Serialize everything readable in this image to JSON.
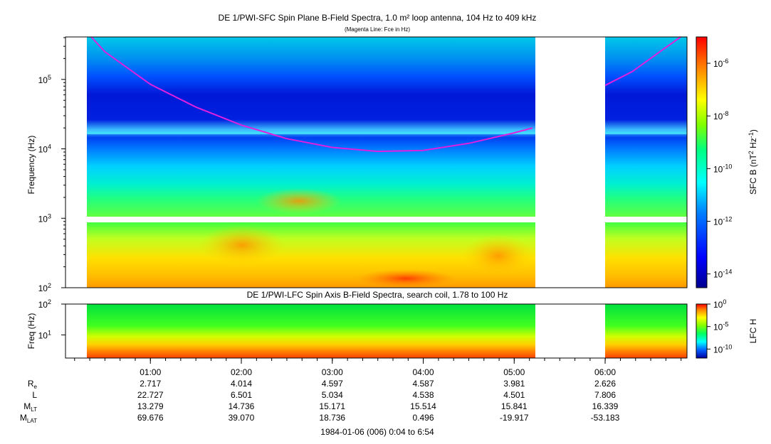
{
  "chart_data": [
    {
      "type": "heatmap",
      "title": "DE 1/PWI-SFC  Spin Plane B-Field Spectra, 1.0 m² loop antenna, 104 Hz to 409 kHz",
      "subtitle": "(Magenta Line: Fce in Hz)",
      "ylabel": "Frequency (Hz)",
      "yscale": "log",
      "ylim": [
        100,
        409000
      ],
      "yticks": [
        {
          "value": 100,
          "base": "10",
          "exp": "2"
        },
        {
          "value": 1000,
          "base": "10",
          "exp": "3"
        },
        {
          "value": 10000,
          "base": "10",
          "exp": "4"
        },
        {
          "value": 100000,
          "base": "10",
          "exp": "5"
        }
      ],
      "colorbar": {
        "label": "SFC B (nT",
        "label_sup1": "2",
        "label_mid": " Hz",
        "label_sup2": "-1",
        "label_end": ")",
        "scale": "log",
        "range": [
          3e-15,
          1e-05
        ],
        "ticks": [
          {
            "value": 1e-06,
            "base": "10",
            "exp": "-6"
          },
          {
            "value": 1e-08,
            "base": "10",
            "exp": "-8"
          },
          {
            "value": 1e-10,
            "base": "10",
            "exp": "-10"
          },
          {
            "value": 1e-12,
            "base": "10",
            "exp": "-12"
          },
          {
            "value": 1e-14,
            "base": "10",
            "exp": "-14"
          }
        ]
      },
      "data_gaps_hours": [
        [
          5.2,
          5.98
        ]
      ],
      "fce_line": {
        "color": "#e020e0",
        "segments": [
          [
            [
              0.35,
              409000
            ],
            [
              0.5,
              250000
            ],
            [
              1.0,
              85000
            ],
            [
              1.5,
              40000
            ],
            [
              2.0,
              22000
            ],
            [
              2.5,
              14000
            ],
            [
              3.0,
              10500
            ],
            [
              3.5,
              9200
            ],
            [
              4.0,
              9500
            ],
            [
              4.5,
              12000
            ],
            [
              5.0,
              17000
            ],
            [
              5.2,
              20000
            ]
          ],
          [
            [
              6.0,
              82000
            ],
            [
              6.3,
              130000
            ],
            [
              6.6,
              250000
            ],
            [
              6.83,
              409000
            ]
          ]
        ]
      }
    },
    {
      "type": "heatmap",
      "title": "DE 1/PWI-LFC  Spin Axis B-Field Spectra, search coil, 1.78 to 100 Hz",
      "ylabel": "Freq (Hz)",
      "yscale": "log",
      "ylim": [
        1.78,
        100
      ],
      "yticks": [
        {
          "value": 10,
          "base": "10",
          "exp": "1"
        },
        {
          "value": 100,
          "base": "10",
          "exp": "2"
        }
      ],
      "colorbar": {
        "label": "LFC H",
        "scale": "log",
        "range": [
          1e-12,
          1
        ],
        "ticks": [
          {
            "value": 1,
            "base": "10",
            "exp": "0"
          },
          {
            "value": 1e-05,
            "base": "10",
            "exp": "-5"
          },
          {
            "value": 1e-10,
            "base": "10",
            "exp": "-10"
          }
        ]
      },
      "data_gaps_hours": [
        [
          5.2,
          5.98
        ]
      ]
    }
  ],
  "time_axis": {
    "range_hours": [
      0.0667,
      6.9
    ],
    "ticks": [
      {
        "hour": 1,
        "label": "01:00"
      },
      {
        "hour": 2,
        "label": "02:00"
      },
      {
        "hour": 3,
        "label": "03:00"
      },
      {
        "hour": 4,
        "label": "04:00"
      },
      {
        "hour": 5,
        "label": "05:00"
      },
      {
        "hour": 6,
        "label": "06:00"
      }
    ],
    "minor_step_hours": 0.1667
  },
  "ephemeris": {
    "rows": [
      {
        "label": "R",
        "sub": "e",
        "values": [
          "2.717",
          "4.014",
          "4.597",
          "4.587",
          "3.981",
          "2.626"
        ]
      },
      {
        "label": "L",
        "sub": "",
        "values": [
          "22.727",
          "6.501",
          "5.034",
          "4.538",
          "4.501",
          "7.806"
        ]
      },
      {
        "label": "M",
        "sub": "LT",
        "values": [
          "13.279",
          "14.736",
          "15.171",
          "15.514",
          "15.841",
          "16.339"
        ]
      },
      {
        "label": "M",
        "sub": "LAT",
        "values": [
          "69.676",
          "39.070",
          "18.736",
          "0.496",
          "-19.917",
          "-53.183"
        ]
      }
    ]
  },
  "footer": "1984-01-06 (006) 0:04 to 6:54"
}
